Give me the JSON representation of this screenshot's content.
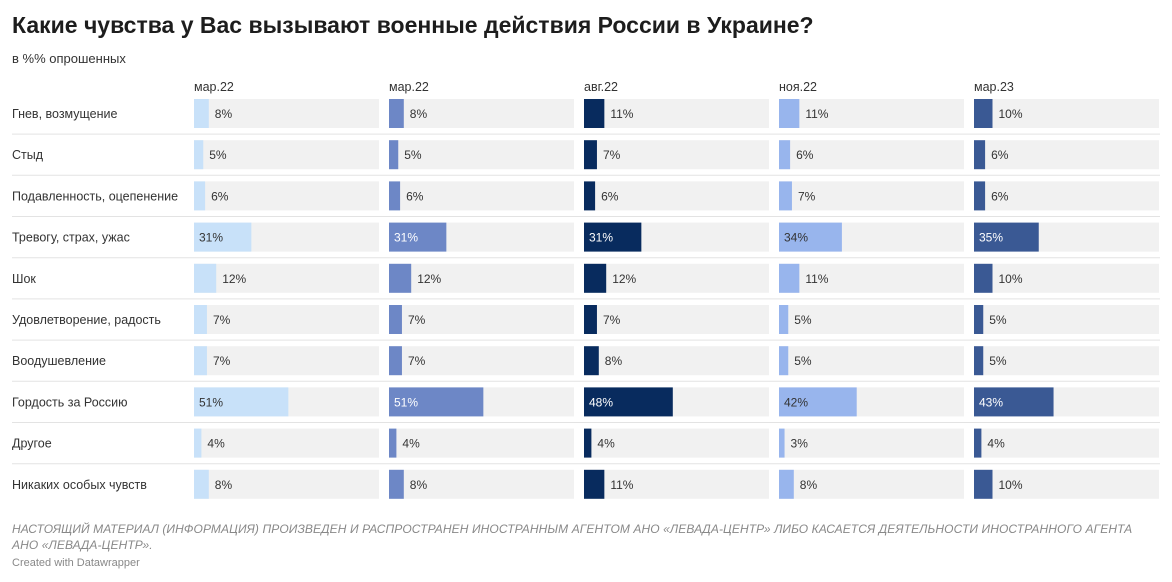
{
  "header": {
    "title": "Какие чувства у Вас вызывают военные действия России в Украине?",
    "subtitle": "в %% опрошенных"
  },
  "chart_data": {
    "type": "bar",
    "title": "Какие чувства у Вас вызывают военные действия России в Украине?",
    "subtitle": "в %% опрошенных",
    "layout": "small-multiples-horizontal-bars",
    "xlim": [
      0,
      100
    ],
    "value_suffix": "%",
    "categories": [
      "Гнев, возмущение",
      "Стыд",
      "Подавленность, оцепенение",
      "Тревогу, страх, ужас",
      "Шок",
      "Удовлетворение, радость",
      "Воодушевление",
      "Гордость за Россию",
      "Другое",
      "Никаких особых чувств"
    ],
    "series": [
      {
        "name": "мар.22",
        "color": "#c8e1f9",
        "values": [
          8,
          5,
          6,
          31,
          12,
          7,
          7,
          51,
          4,
          8
        ]
      },
      {
        "name": "мар.22",
        "color": "#6d87c6",
        "values": [
          8,
          5,
          6,
          31,
          12,
          7,
          7,
          51,
          4,
          8
        ]
      },
      {
        "name": "авг.22",
        "color": "#082b5e",
        "values": [
          11,
          7,
          6,
          31,
          12,
          7,
          8,
          48,
          4,
          11
        ]
      },
      {
        "name": "ноя.22",
        "color": "#98b5ed",
        "values": [
          11,
          6,
          7,
          34,
          11,
          5,
          5,
          42,
          3,
          8
        ]
      },
      {
        "name": "мар.23",
        "color": "#3a5994",
        "values": [
          10,
          6,
          6,
          35,
          10,
          5,
          5,
          43,
          4,
          10
        ]
      }
    ]
  },
  "footer": {
    "notice": "НАСТОЯЩИЙ МАТЕРИАЛ (ИНФОРМАЦИЯ) ПРОИЗВЕДЕН И РАСПРОСТРАНЕН ИНОСТРАННЫМ АГЕНТОМ АНО «ЛЕВАДА-ЦЕНТР» ЛИБО КАСАЕТСЯ ДЕЯТЕЛЬНОСТИ ИНОСТРАННОГО АГЕНТА АНО «ЛЕВАДА-ЦЕНТР».",
    "credit": "Created with Datawrapper"
  }
}
